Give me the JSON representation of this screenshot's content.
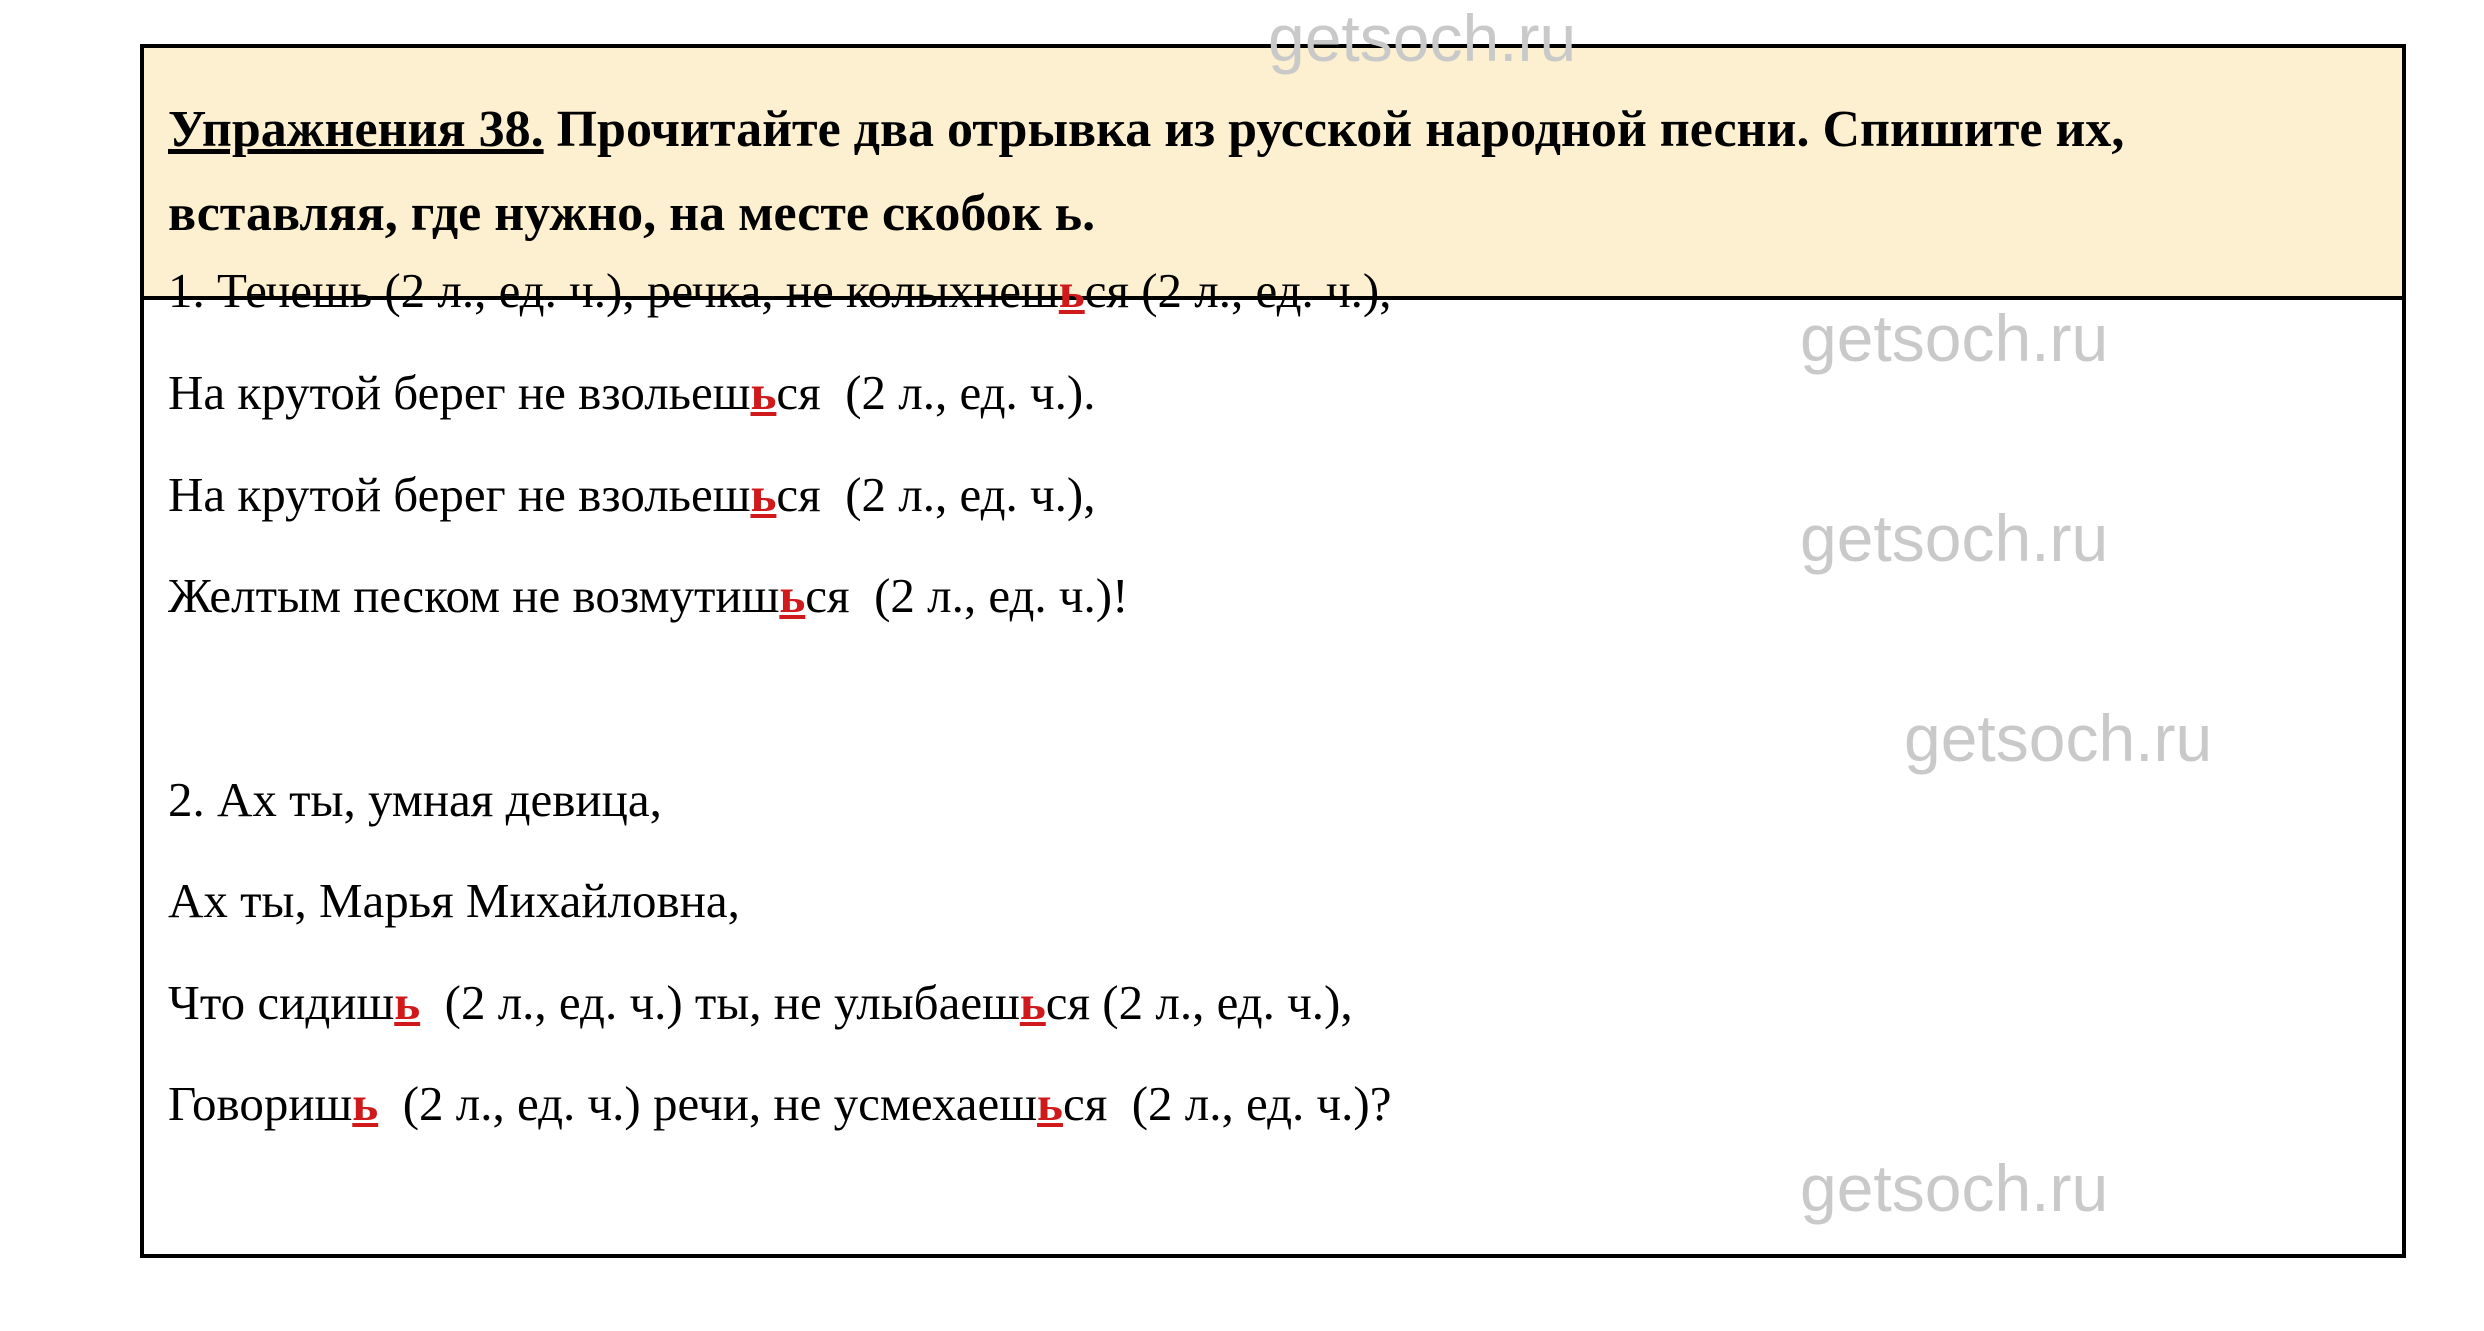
{
  "task": {
    "number_label": "Упражнения 38.",
    "text_line1": " Прочитайте два отрывка из русской народной песни. Спишите их,",
    "text_line2": "вставляя, где нужно, на месте скобок ь."
  },
  "colors": {
    "header_bg": "#fdf0d0",
    "highlight": "#d0191b",
    "watermark": "#c9c9c9"
  },
  "lines": [
    [
      {
        "t": "1. Течешь (2 л., ед. ч.), речка, не колыхнеш"
      },
      {
        "t": "ь",
        "hl": true
      },
      {
        "t": "ся (2 л., ед. ч.),"
      }
    ],
    [
      {
        "t": "На крутой берег не взольеш"
      },
      {
        "t": "ь",
        "hl": true
      },
      {
        "t": "ся  (2 л., ед. ч.)."
      }
    ],
    [
      {
        "t": "На крутой берег не взольеш"
      },
      {
        "t": "ь",
        "hl": true
      },
      {
        "t": "ся  (2 л., ед. ч.),"
      }
    ],
    [
      {
        "t": "Желтым песком не возмутиш"
      },
      {
        "t": "ь",
        "hl": true
      },
      {
        "t": "ся  (2 л., ед. ч.)!"
      }
    ],
    [
      {
        "t": "2. Ах ты, умная девица,"
      }
    ],
    [
      {
        "t": "Ах ты, Марья Михайловна,"
      }
    ],
    [
      {
        "t": "Что сидиш"
      },
      {
        "t": "ь",
        "hl": true
      },
      {
        "t": "  (2 л., ед. ч.) ты, не улыбаеш"
      },
      {
        "t": "ь",
        "hl": true
      },
      {
        "t": "ся (2 л., ед. ч.),"
      }
    ],
    [
      {
        "t": "Говориш"
      },
      {
        "t": "ь",
        "hl": true
      },
      {
        "t": "  (2 л., ед. ч.) речи, не усмехаеш"
      },
      {
        "t": "ь",
        "hl": true
      },
      {
        "t": "ся  (2 л., ед. ч.)?"
      }
    ]
  ],
  "watermark": "getsoch.ru"
}
